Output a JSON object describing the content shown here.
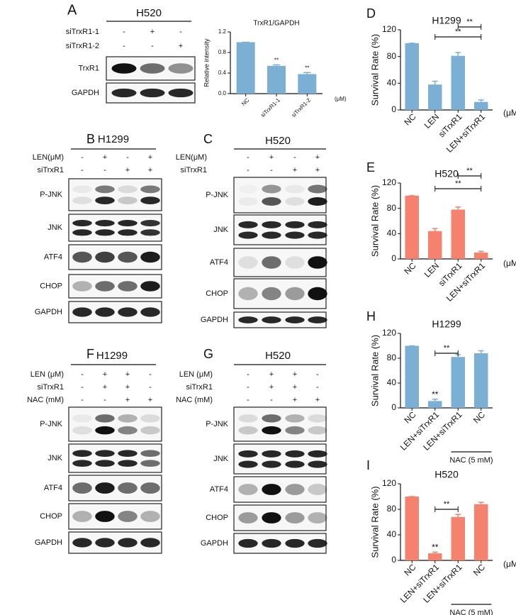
{
  "blots": [
    {
      "panel": "A",
      "cell": "H520",
      "conditions": [
        {
          "name": "siTrxR1-1",
          "signs": [
            "-",
            "+",
            "-"
          ]
        },
        {
          "name": "siTrxR1-2",
          "signs": [
            "-",
            "-",
            "+"
          ]
        }
      ],
      "rows": [
        "TrxR1",
        "GAPDH"
      ]
    },
    {
      "panel": "B",
      "cell": "H1299",
      "conditions": [
        {
          "name": "LEN(μM)",
          "signs": [
            "-",
            "+",
            "-",
            "+"
          ]
        },
        {
          "name": "siTrxR1",
          "signs": [
            "-",
            "-",
            "+",
            "+"
          ]
        }
      ],
      "rows": [
        "P-JNK",
        "JNK",
        "ATF4",
        "CHOP",
        "GAPDH"
      ]
    },
    {
      "panel": "C",
      "cell": "H520",
      "conditions": [
        {
          "name": "LEN(μM)",
          "signs": [
            "-",
            "+",
            "-",
            "+"
          ]
        },
        {
          "name": "siTrxR1",
          "signs": [
            "-",
            "-",
            "+",
            "+"
          ]
        }
      ],
      "rows": [
        "P-JNK",
        "JNK",
        "ATF4",
        "CHOP",
        "GAPDH"
      ]
    },
    {
      "panel": "F",
      "cell": "H1299",
      "conditions": [
        {
          "name": "LEN (μM)",
          "signs": [
            "-",
            "+",
            "+",
            "-"
          ]
        },
        {
          "name": "siTrxR1",
          "signs": [
            "-",
            "+",
            "+",
            "-"
          ]
        },
        {
          "name": "NAC (mM)",
          "signs": [
            "-",
            "-",
            "+",
            "+"
          ]
        }
      ],
      "rows": [
        "P-JNK",
        "JNK",
        "ATF4",
        "CHOP",
        "GAPDH"
      ]
    },
    {
      "panel": "G",
      "cell": "H520",
      "conditions": [
        {
          "name": "LEN (μM)",
          "signs": [
            "-",
            "+",
            "+",
            "-"
          ]
        },
        {
          "name": "siTrxR1",
          "signs": [
            "-",
            "+",
            "+",
            "-"
          ]
        },
        {
          "name": "NAC (mM)",
          "signs": [
            "-",
            "-",
            "+",
            "+"
          ]
        }
      ],
      "rows": [
        "P-JNK",
        "JNK",
        "ATF4",
        "CHOP",
        "GAPDH"
      ]
    }
  ],
  "chart_data": [
    {
      "type": "bar",
      "title": "TrxR1/GAPDH",
      "y_label": "Relative intensity",
      "unit": "(μM)",
      "categories": [
        "NC",
        "siTrxR1-1",
        "siTrxR1-2"
      ],
      "values": [
        1.0,
        0.54,
        0.38
      ],
      "errors": [
        0,
        0.02,
        0.03
      ],
      "bar_labels": [
        null,
        "**",
        "**"
      ],
      "color": "#7bafd4",
      "ylim": [
        0,
        1.2
      ],
      "yticks": [
        {
          "value": 0,
          "label": "0.0"
        },
        0.4,
        0.8,
        1.2
      ]
    },
    {
      "type": "bar",
      "panel": "D",
      "title": "H1299",
      "y_label": "Survival Rate (%)",
      "unit": "(μM)",
      "categories": [
        "NC",
        "LEN",
        "siTrxR1",
        "LEN+siTrxR1"
      ],
      "values": [
        100,
        38,
        81,
        12
      ],
      "errors": [
        0,
        5,
        5,
        3
      ],
      "brackets": [
        {
          "from": 2,
          "to": 3,
          "text": "**"
        },
        {
          "from": 1,
          "to": 3,
          "text": "**"
        }
      ],
      "color": "#7bafd4",
      "ylim": [
        0,
        120
      ],
      "yticks": [
        0,
        40,
        80,
        120
      ]
    },
    {
      "type": "bar",
      "panel": "E",
      "title": "H520",
      "y_label": "Survival Rate (%)",
      "unit": "(μM)",
      "categories": [
        "NC",
        "LEN",
        "siTrxR1",
        "LEN+siTrxR1"
      ],
      "values": [
        100,
        44,
        78,
        10
      ],
      "errors": [
        0,
        4,
        4,
        2
      ],
      "brackets": [
        {
          "from": 2,
          "to": 3,
          "text": "**"
        },
        {
          "from": 1,
          "to": 3,
          "text": "**"
        }
      ],
      "color": "#f4826e",
      "ylim": [
        0,
        120
      ],
      "yticks": [
        0,
        40,
        80,
        120
      ]
    },
    {
      "type": "bar",
      "panel": "H",
      "title": "H1299",
      "y_label": "Survival Rate (%)",
      "categories": [
        "NC",
        "LEN+siTrxR1",
        "LEN+siTrxR1",
        "NC"
      ],
      "values": [
        100,
        11,
        82,
        88
      ],
      "errors": [
        0,
        3,
        4,
        4
      ],
      "bar_labels": [
        null,
        "**",
        null,
        null
      ],
      "brackets": [
        {
          "from": 1,
          "to": 2,
          "text": "**"
        }
      ],
      "group_label": {
        "text": "NAC (5 mM)",
        "from": 2,
        "to": 3
      },
      "color": "#7bafd4",
      "ylim": [
        0,
        120
      ],
      "yticks": [
        0,
        40,
        80,
        120
      ]
    },
    {
      "type": "bar",
      "panel": "I",
      "title": "H520",
      "y_label": "Survival Rate (%)",
      "unit": "(μM)",
      "categories": [
        "NC",
        "LEN+siTrxR1",
        "LEN+siTrxR1",
        "NC"
      ],
      "values": [
        100,
        11,
        68,
        88
      ],
      "errors": [
        0,
        2,
        4,
        3
      ],
      "bar_labels": [
        null,
        "**",
        null,
        null
      ],
      "brackets": [
        {
          "from": 1,
          "to": 2,
          "text": "**"
        }
      ],
      "group_label": {
        "text": "NAC (5 mM)",
        "from": 2,
        "to": 3
      },
      "color": "#f4826e",
      "ylim": [
        0,
        120
      ],
      "yticks": [
        0,
        40,
        80,
        120
      ]
    }
  ]
}
